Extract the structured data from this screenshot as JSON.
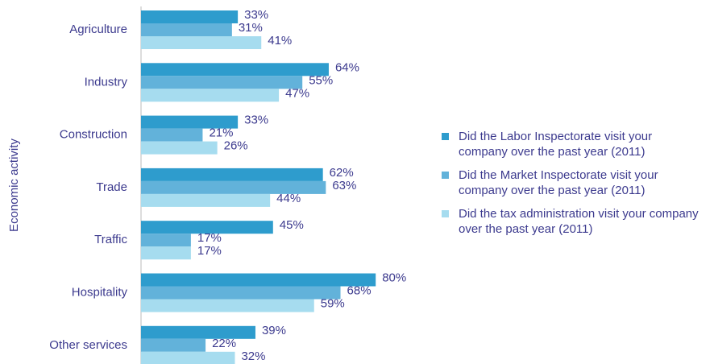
{
  "chart_data": {
    "type": "hbar",
    "y_label": "Economic activity",
    "categories": [
      "Agriculture",
      "Industry",
      "Construction",
      "Trade",
      "Traffic",
      "Hospitality",
      "Other services"
    ],
    "xlim": [
      0,
      100
    ],
    "series": [
      {
        "name": "Did the Labor Inspectorate visit your company over the past year (2011)",
        "color": "#2e9ccd",
        "values": [
          33,
          64,
          33,
          62,
          45,
          80,
          39
        ],
        "value_labels": [
          "33%",
          "64%",
          "33%",
          "62%",
          "45%",
          "80%",
          "39%"
        ]
      },
      {
        "name": "Did the Market Inspectorate visit your company over the past year (2011)",
        "color": "#62b2da",
        "values": [
          31,
          55,
          21,
          63,
          17,
          68,
          22
        ],
        "value_labels": [
          "31%",
          "55%",
          "21%",
          "63%",
          "17%",
          "68%",
          "22%"
        ]
      },
      {
        "name": "Did the tax administration visit your company over the past year (2011)",
        "color": "#a6dcef",
        "values": [
          41,
          47,
          26,
          44,
          17,
          59,
          32
        ],
        "value_labels": [
          "41%",
          "47%",
          "26%",
          "44%",
          "17%",
          "59%",
          "32%"
        ]
      }
    ]
  }
}
